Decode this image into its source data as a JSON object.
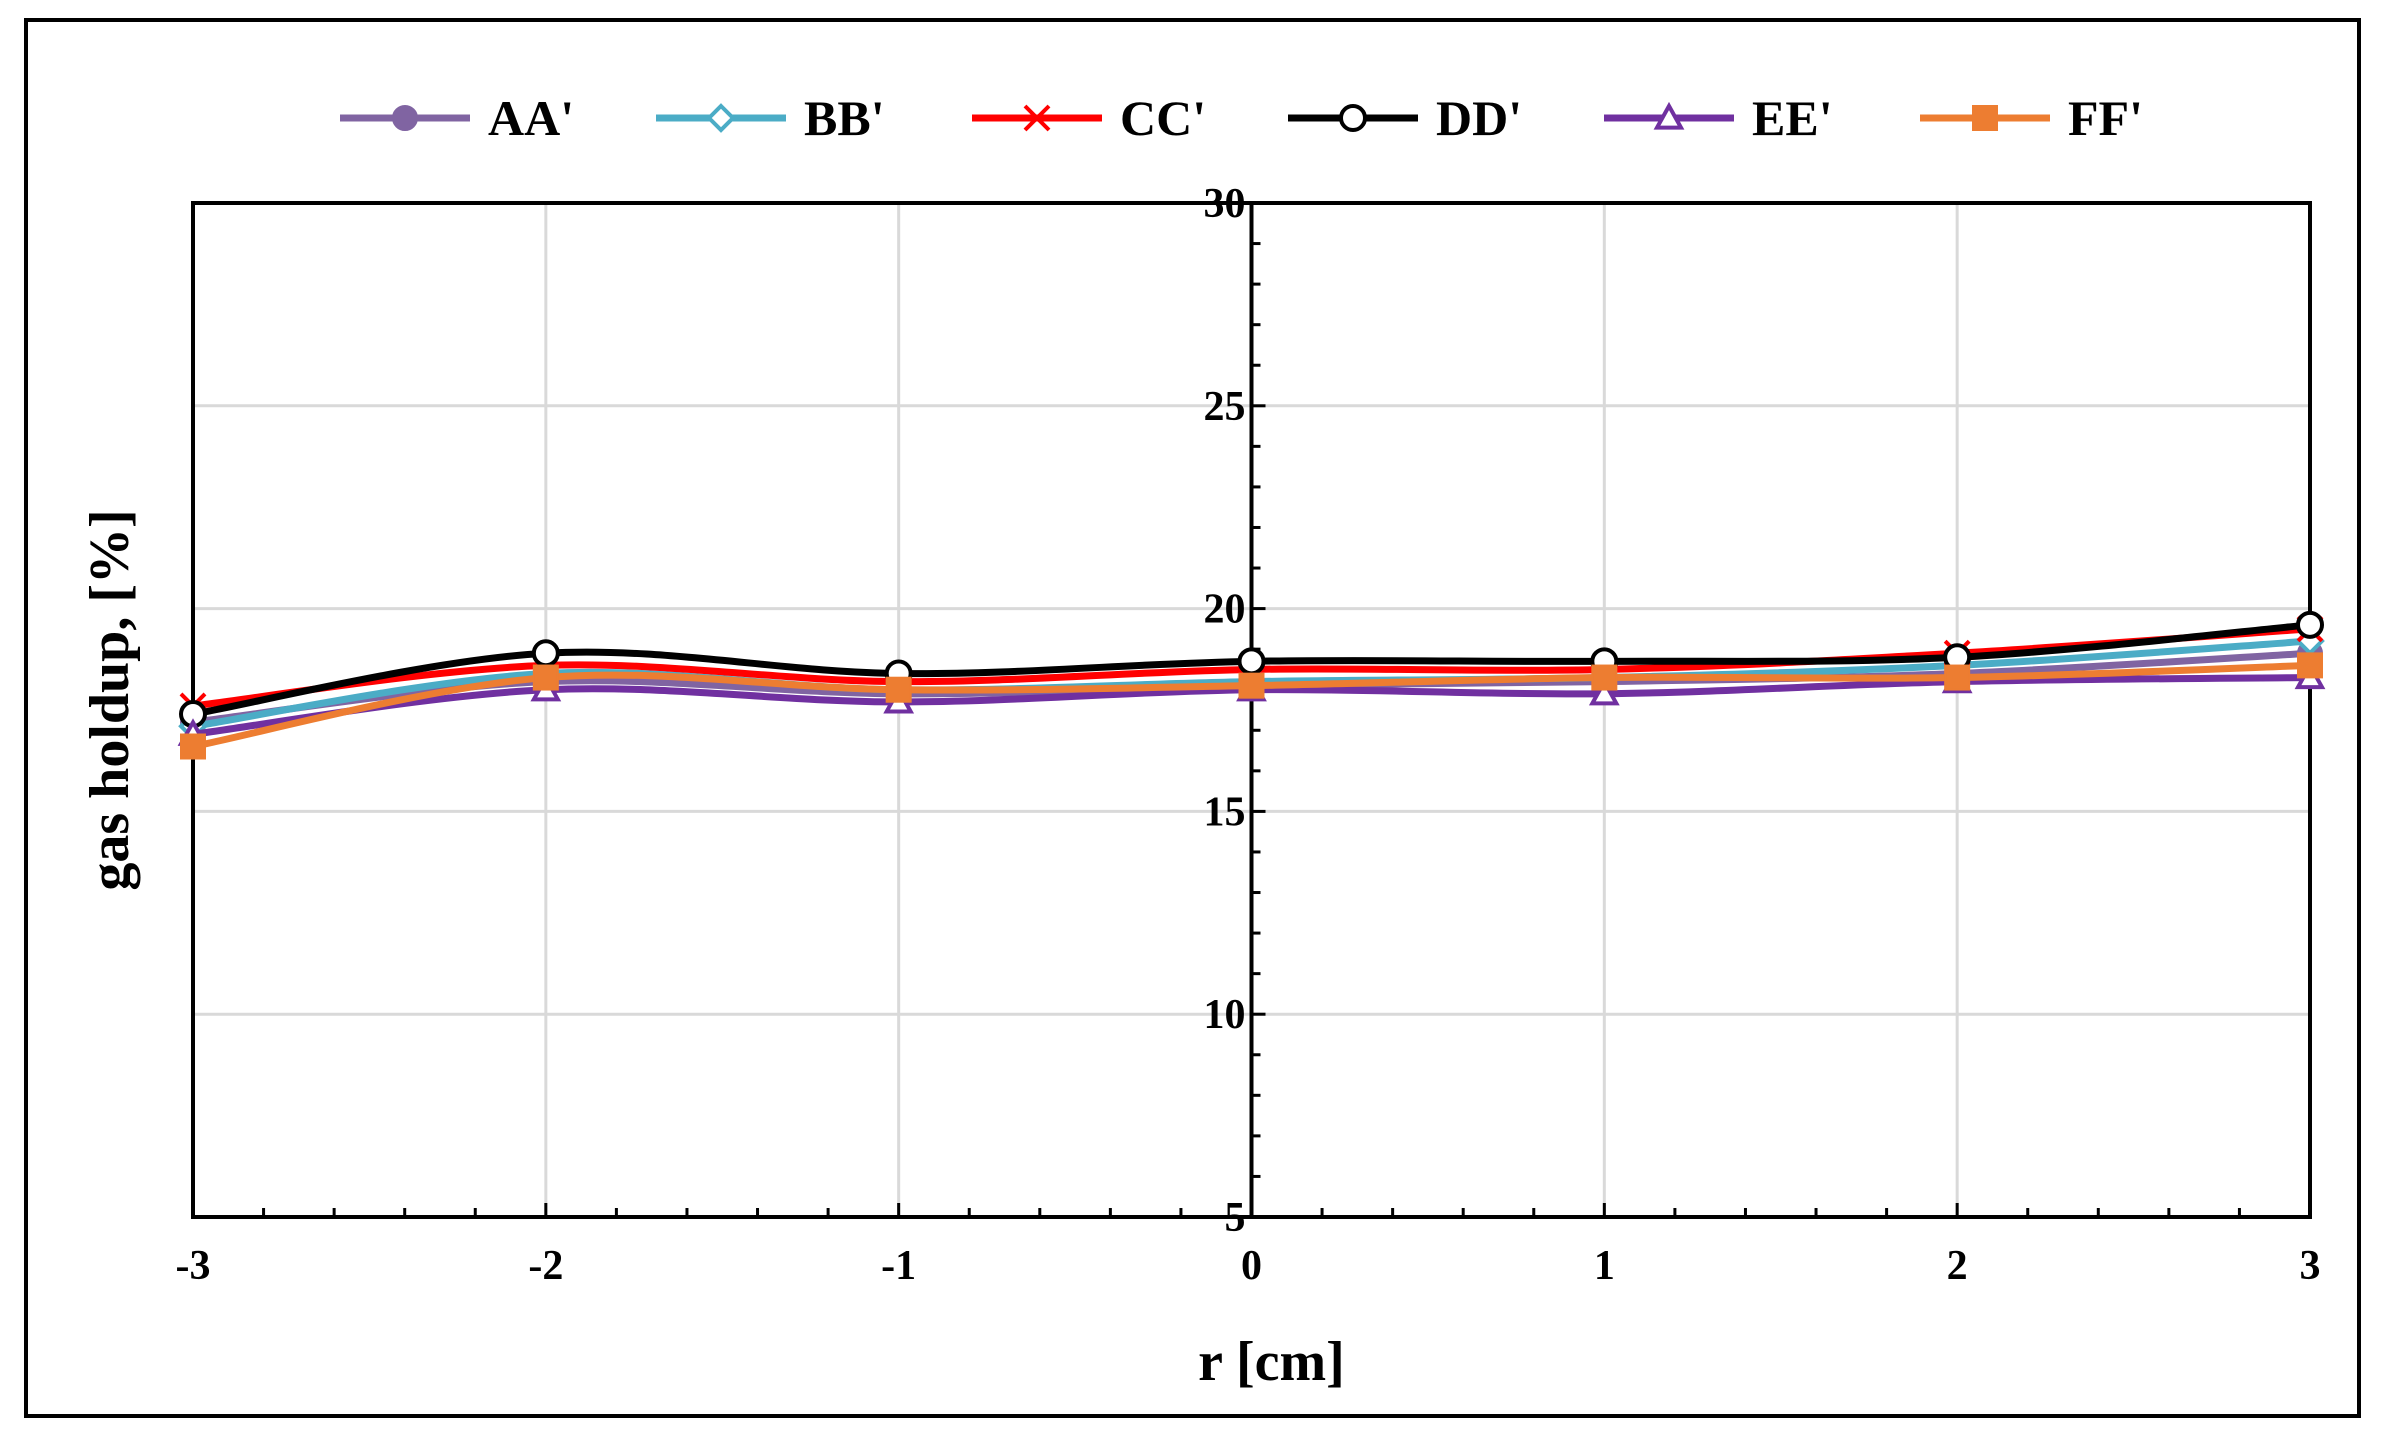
{
  "chart_data": {
    "type": "line",
    "xlabel": "r [cm]",
    "ylabel": "gas holdup, [%]",
    "xlim": [
      -3,
      3
    ],
    "ylim": [
      5,
      30
    ],
    "x_ticks": [
      "-3",
      "-2",
      "-1",
      "0",
      "1",
      "2",
      "3"
    ],
    "y_ticks": [
      "5",
      "10",
      "15",
      "20",
      "25",
      "30"
    ],
    "grid": true,
    "legend_position": "top",
    "x": [
      -3,
      -2,
      -1,
      0,
      1,
      2,
      3
    ],
    "series": [
      {
        "name": "AA'",
        "color": "#8064a2",
        "marker": "circle-filled",
        "values": [
          17.2,
          18.2,
          17.9,
          18.1,
          18.2,
          18.4,
          18.9
        ]
      },
      {
        "name": "BB'",
        "color": "#4bacc6",
        "marker": "diamond-open",
        "values": [
          17.1,
          18.4,
          18.0,
          18.2,
          18.3,
          18.6,
          19.2
        ]
      },
      {
        "name": "CC'",
        "color": "#ff0000",
        "marker": "x",
        "values": [
          17.6,
          18.6,
          18.2,
          18.5,
          18.5,
          18.9,
          19.5
        ]
      },
      {
        "name": "DD'",
        "color": "#000000",
        "marker": "circle-open",
        "values": [
          17.4,
          18.9,
          18.4,
          18.7,
          18.7,
          18.8,
          19.6
        ]
      },
      {
        "name": "EE'",
        "color": "#7030a0",
        "marker": "triangle",
        "values": [
          16.9,
          18.0,
          17.7,
          18.0,
          17.9,
          18.2,
          18.3
        ]
      },
      {
        "name": "FF'",
        "color": "#ed7d31",
        "marker": "square",
        "values": [
          16.6,
          18.3,
          18.0,
          18.1,
          18.3,
          18.3,
          18.6
        ]
      }
    ]
  }
}
